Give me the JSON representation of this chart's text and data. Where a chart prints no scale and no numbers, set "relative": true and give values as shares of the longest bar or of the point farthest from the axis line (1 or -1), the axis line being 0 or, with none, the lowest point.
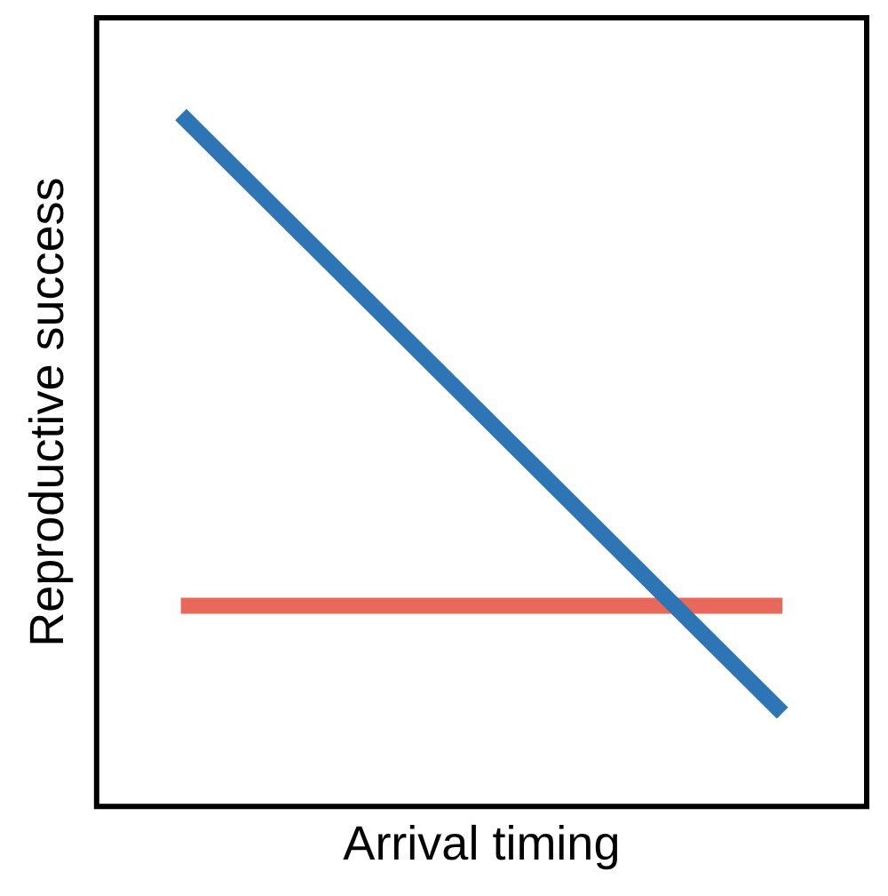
{
  "chart_data": {
    "type": "line",
    "relative": true,
    "xlabel": "Arrival timing",
    "ylabel": "Reproductive success",
    "categories": [
      null,
      null
    ],
    "grid": false,
    "legend": false,
    "marker": "none",
    "line_style": "solid",
    "series": [
      {
        "color": "#2e75b6",
        "values": [
          1,
          0.135
        ]
      },
      {
        "color": "#e8685a",
        "values": [
          0.29,
          0.29
        ]
      }
    ]
  }
}
